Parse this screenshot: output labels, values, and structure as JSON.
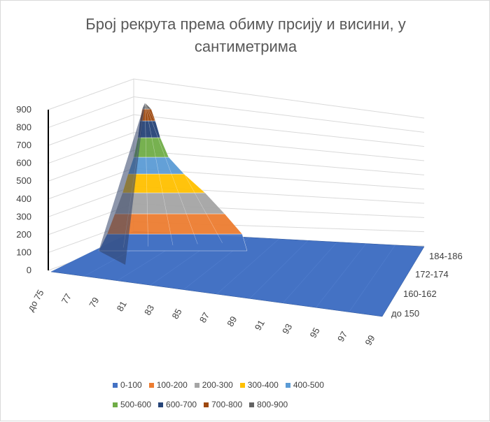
{
  "chart_data": {
    "type": "surface",
    "title": "Број рекрута према обиму прсију и висини, у сантиметрима",
    "x_categories": [
      "до 75",
      "77",
      "79",
      "81",
      "83",
      "85",
      "87",
      "89",
      "91",
      "93",
      "95",
      "97",
      "99"
    ],
    "y_categories": [
      "до 150",
      "160-162",
      "172-174",
      "184-186"
    ],
    "z_axis": {
      "ticks": [
        0,
        100,
        200,
        300,
        400,
        500,
        600,
        700,
        800,
        900
      ],
      "range": [
        0,
        900
      ]
    },
    "peak": {
      "chest": "81",
      "value": 880
    },
    "bands": [
      {
        "label": "0-100",
        "color": "#4472c4"
      },
      {
        "label": "100-200",
        "color": "#ed7d31"
      },
      {
        "label": "200-300",
        "color": "#a5a5a5"
      },
      {
        "label": "300-400",
        "color": "#ffc000"
      },
      {
        "label": "400-500",
        "color": "#5b9bd5"
      },
      {
        "label": "500-600",
        "color": "#70ad47"
      },
      {
        "label": "600-700",
        "color": "#264478"
      },
      {
        "label": "700-800",
        "color": "#9e480e"
      },
      {
        "label": "800-900",
        "color": "#636363"
      }
    ],
    "legend_position": "bottom",
    "grid": true
  }
}
